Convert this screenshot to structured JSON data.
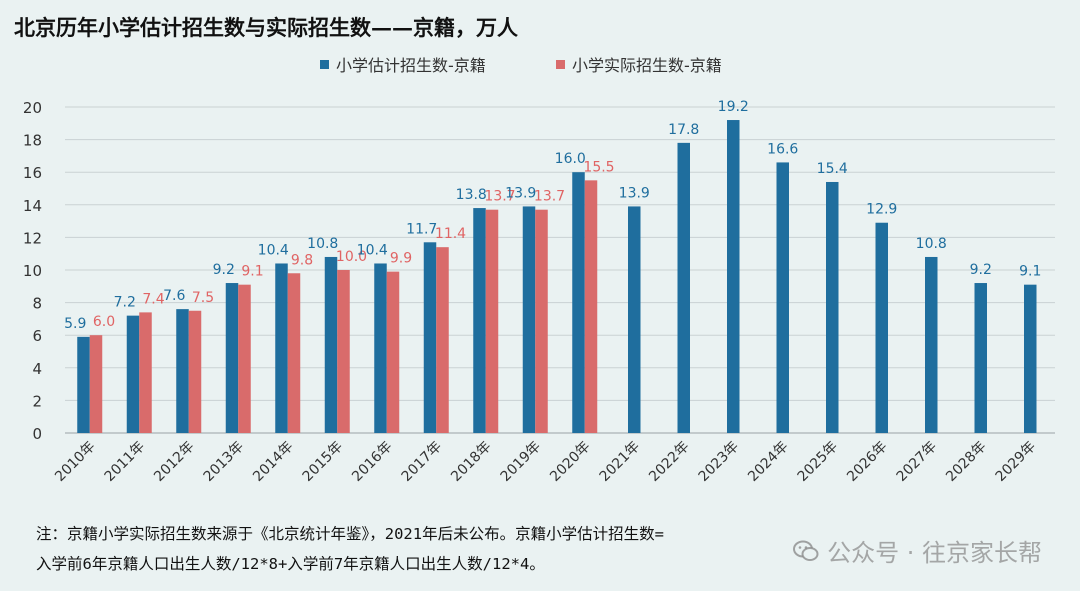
{
  "chart_data": {
    "type": "bar",
    "title": "北京历年小学估计招生数与实际招生数——京籍，万人",
    "categories": [
      "2010年",
      "2011年",
      "2012年",
      "2013年",
      "2014年",
      "2015年",
      "2016年",
      "2017年",
      "2018年",
      "2019年",
      "2020年",
      "2021年",
      "2022年",
      "2023年",
      "2024年",
      "2025年",
      "2026年",
      "2027年",
      "2028年",
      "2029年"
    ],
    "series": [
      {
        "name": "小学估计招生数-京籍",
        "color": "#1f6e9e",
        "label_color": "#1f6e9e",
        "values": [
          5.9,
          7.2,
          7.6,
          9.2,
          10.4,
          10.8,
          10.4,
          11.7,
          13.8,
          13.9,
          16.0,
          13.9,
          17.8,
          19.2,
          16.6,
          15.4,
          12.9,
          10.8,
          9.2,
          9.1
        ],
        "labels": [
          "5.9",
          "7.2",
          "7.6",
          "9.2",
          "10.4",
          "10.8",
          "10.4",
          "11.7",
          "13.8",
          "13.9",
          "16.0",
          "13.9",
          "17.8",
          "19.2",
          "16.6",
          "15.4",
          "12.9",
          "10.8",
          "9.2",
          "9.1"
        ]
      },
      {
        "name": "小学实际招生数-京籍",
        "color": "#d96b6b",
        "label_color": "#e06464",
        "values": [
          6.0,
          7.4,
          7.5,
          9.1,
          9.8,
          10.0,
          9.9,
          11.4,
          13.7,
          13.7,
          15.5,
          null,
          null,
          null,
          null,
          null,
          null,
          null,
          null,
          null
        ],
        "labels": [
          "6.0",
          "7.4",
          "7.5",
          "9.1",
          "9.8",
          "10.0",
          "9.9",
          "11.4",
          "13.7",
          "13.7",
          "15.5",
          "",
          "",
          "",
          "",
          "",
          "",
          "",
          "",
          ""
        ]
      }
    ],
    "ylim": [
      0,
      20
    ],
    "yticks": [
      "0",
      "2",
      "4",
      "6",
      "8",
      "10",
      "12",
      "14",
      "16",
      "18",
      "20"
    ],
    "grid": true,
    "legend": "top-center"
  },
  "notes": {
    "line1": "注：京籍小学实际招生数来源于《北京统计年鉴》，2021年后未公布。京籍小学估计招生数=",
    "line2": "入学前6年京籍人口出生人数/12*8+入学前7年京籍人口出生人数/12*4。"
  },
  "watermark": {
    "text": "公众号 · 往京家长帮",
    "icon": "wechat-icon"
  }
}
